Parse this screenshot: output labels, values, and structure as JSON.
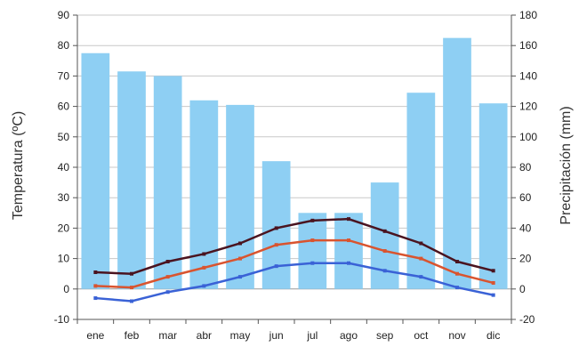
{
  "chart_data": {
    "type": "bar",
    "categories": [
      "ene",
      "feb",
      "mar",
      "abr",
      "may",
      "jun",
      "jul",
      "ago",
      "sep",
      "oct",
      "nov",
      "dic"
    ],
    "ylabel_left": "Temperatura (ºC)",
    "ylabel_right": "Precipitación (mm)",
    "ylim_left": [
      -10,
      90
    ],
    "ylim_right": [
      -20,
      180
    ],
    "left_ticks": [
      "-10",
      "0",
      "10",
      "20",
      "30",
      "40",
      "50",
      "60",
      "70",
      "80",
      "90"
    ],
    "right_ticks": [
      "-20",
      "0",
      "20",
      "40",
      "60",
      "80",
      "100",
      "120",
      "140",
      "160",
      "180"
    ],
    "grid": true,
    "precipitation": {
      "axis": "right",
      "color": "#8ecff3",
      "values": [
        155,
        143,
        140,
        124,
        121,
        84,
        50,
        50,
        70,
        129,
        165,
        122
      ]
    },
    "temperature_series": [
      {
        "axis": "left",
        "color": "#4a1420",
        "values": [
          5.5,
          5.0,
          9.0,
          11.5,
          15.0,
          20.0,
          22.5,
          23.0,
          19.0,
          15.0,
          9.0,
          6.0
        ]
      },
      {
        "axis": "left",
        "color": "#d9542f",
        "values": [
          1.0,
          0.5,
          4.0,
          7.0,
          10.0,
          14.5,
          16.0,
          16.0,
          12.5,
          10.0,
          5.0,
          2.0
        ]
      },
      {
        "axis": "left",
        "color": "#3a62d6",
        "values": [
          -3.0,
          -4.0,
          -1.0,
          1.0,
          4.0,
          7.5,
          8.5,
          8.5,
          6.0,
          4.0,
          0.5,
          -2.0
        ]
      }
    ]
  }
}
